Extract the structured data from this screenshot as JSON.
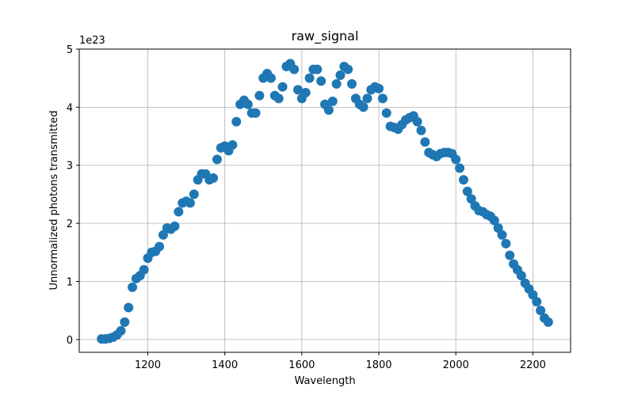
{
  "chart_data": {
    "type": "scatter",
    "title": "raw_signal",
    "x_label": "Wavelength",
    "y_label": "Unnormalized photons transmitted",
    "y_offset_label": "1e23",
    "color": "#1f77b4",
    "grid": true,
    "xlim": [
      1022,
      2298
    ],
    "ylim": [
      -0.22,
      5.0
    ],
    "xticks": [
      1200,
      1400,
      1600,
      1800,
      2000,
      2200
    ],
    "yticks": [
      0,
      1,
      2,
      3,
      4,
      5
    ],
    "x": [
      1080,
      1090,
      1100,
      1110,
      1120,
      1130,
      1140,
      1150,
      1160,
      1170,
      1180,
      1190,
      1200,
      1210,
      1220,
      1230,
      1240,
      1250,
      1260,
      1270,
      1280,
      1290,
      1300,
      1310,
      1320,
      1330,
      1340,
      1350,
      1360,
      1370,
      1380,
      1390,
      1400,
      1410,
      1420,
      1430,
      1440,
      1450,
      1460,
      1470,
      1480,
      1490,
      1500,
      1510,
      1520,
      1530,
      1540,
      1550,
      1560,
      1570,
      1580,
      1590,
      1600,
      1610,
      1620,
      1630,
      1640,
      1650,
      1660,
      1670,
      1680,
      1690,
      1700,
      1710,
      1720,
      1730,
      1740,
      1750,
      1760,
      1770,
      1780,
      1790,
      1800,
      1810,
      1820,
      1830,
      1840,
      1850,
      1860,
      1870,
      1880,
      1890,
      1900,
      1910,
      1920,
      1930,
      1940,
      1950,
      1960,
      1970,
      1980,
      1990,
      2000,
      2010,
      2020,
      2030,
      2040,
      2050,
      2060,
      2070,
      2080,
      2090,
      2100,
      2110,
      2120,
      2130,
      2140,
      2150,
      2160,
      2170,
      2180,
      2190,
      2200,
      2210,
      2220,
      2230,
      2240
    ],
    "values": [
      0.01,
      0.01,
      0.02,
      0.04,
      0.08,
      0.15,
      0.3,
      0.55,
      0.9,
      1.05,
      1.1,
      1.2,
      1.4,
      1.5,
      1.52,
      1.6,
      1.8,
      1.92,
      1.9,
      1.95,
      2.2,
      2.35,
      2.38,
      2.35,
      2.5,
      2.75,
      2.85,
      2.85,
      2.75,
      2.78,
      3.1,
      3.3,
      3.33,
      3.25,
      3.35,
      3.75,
      4.05,
      4.12,
      4.05,
      3.9,
      3.9,
      4.2,
      4.5,
      4.58,
      4.5,
      4.2,
      4.15,
      4.35,
      4.7,
      4.75,
      4.65,
      4.3,
      4.15,
      4.25,
      4.5,
      4.65,
      4.65,
      4.45,
      4.05,
      3.95,
      4.1,
      4.4,
      4.55,
      4.7,
      4.65,
      4.4,
      4.15,
      4.05,
      4.0,
      4.15,
      4.3,
      4.35,
      4.32,
      4.15,
      3.9,
      3.67,
      3.65,
      3.62,
      3.7,
      3.78,
      3.82,
      3.85,
      3.75,
      3.6,
      3.4,
      3.22,
      3.18,
      3.15,
      3.2,
      3.22,
      3.22,
      3.2,
      3.1,
      2.95,
      2.75,
      2.55,
      2.42,
      2.3,
      2.22,
      2.2,
      2.15,
      2.12,
      2.05,
      1.92,
      1.8,
      1.65,
      1.45,
      1.3,
      1.2,
      1.1,
      0.97,
      0.87,
      0.77,
      0.65,
      0.5,
      0.37,
      0.3
    ]
  }
}
